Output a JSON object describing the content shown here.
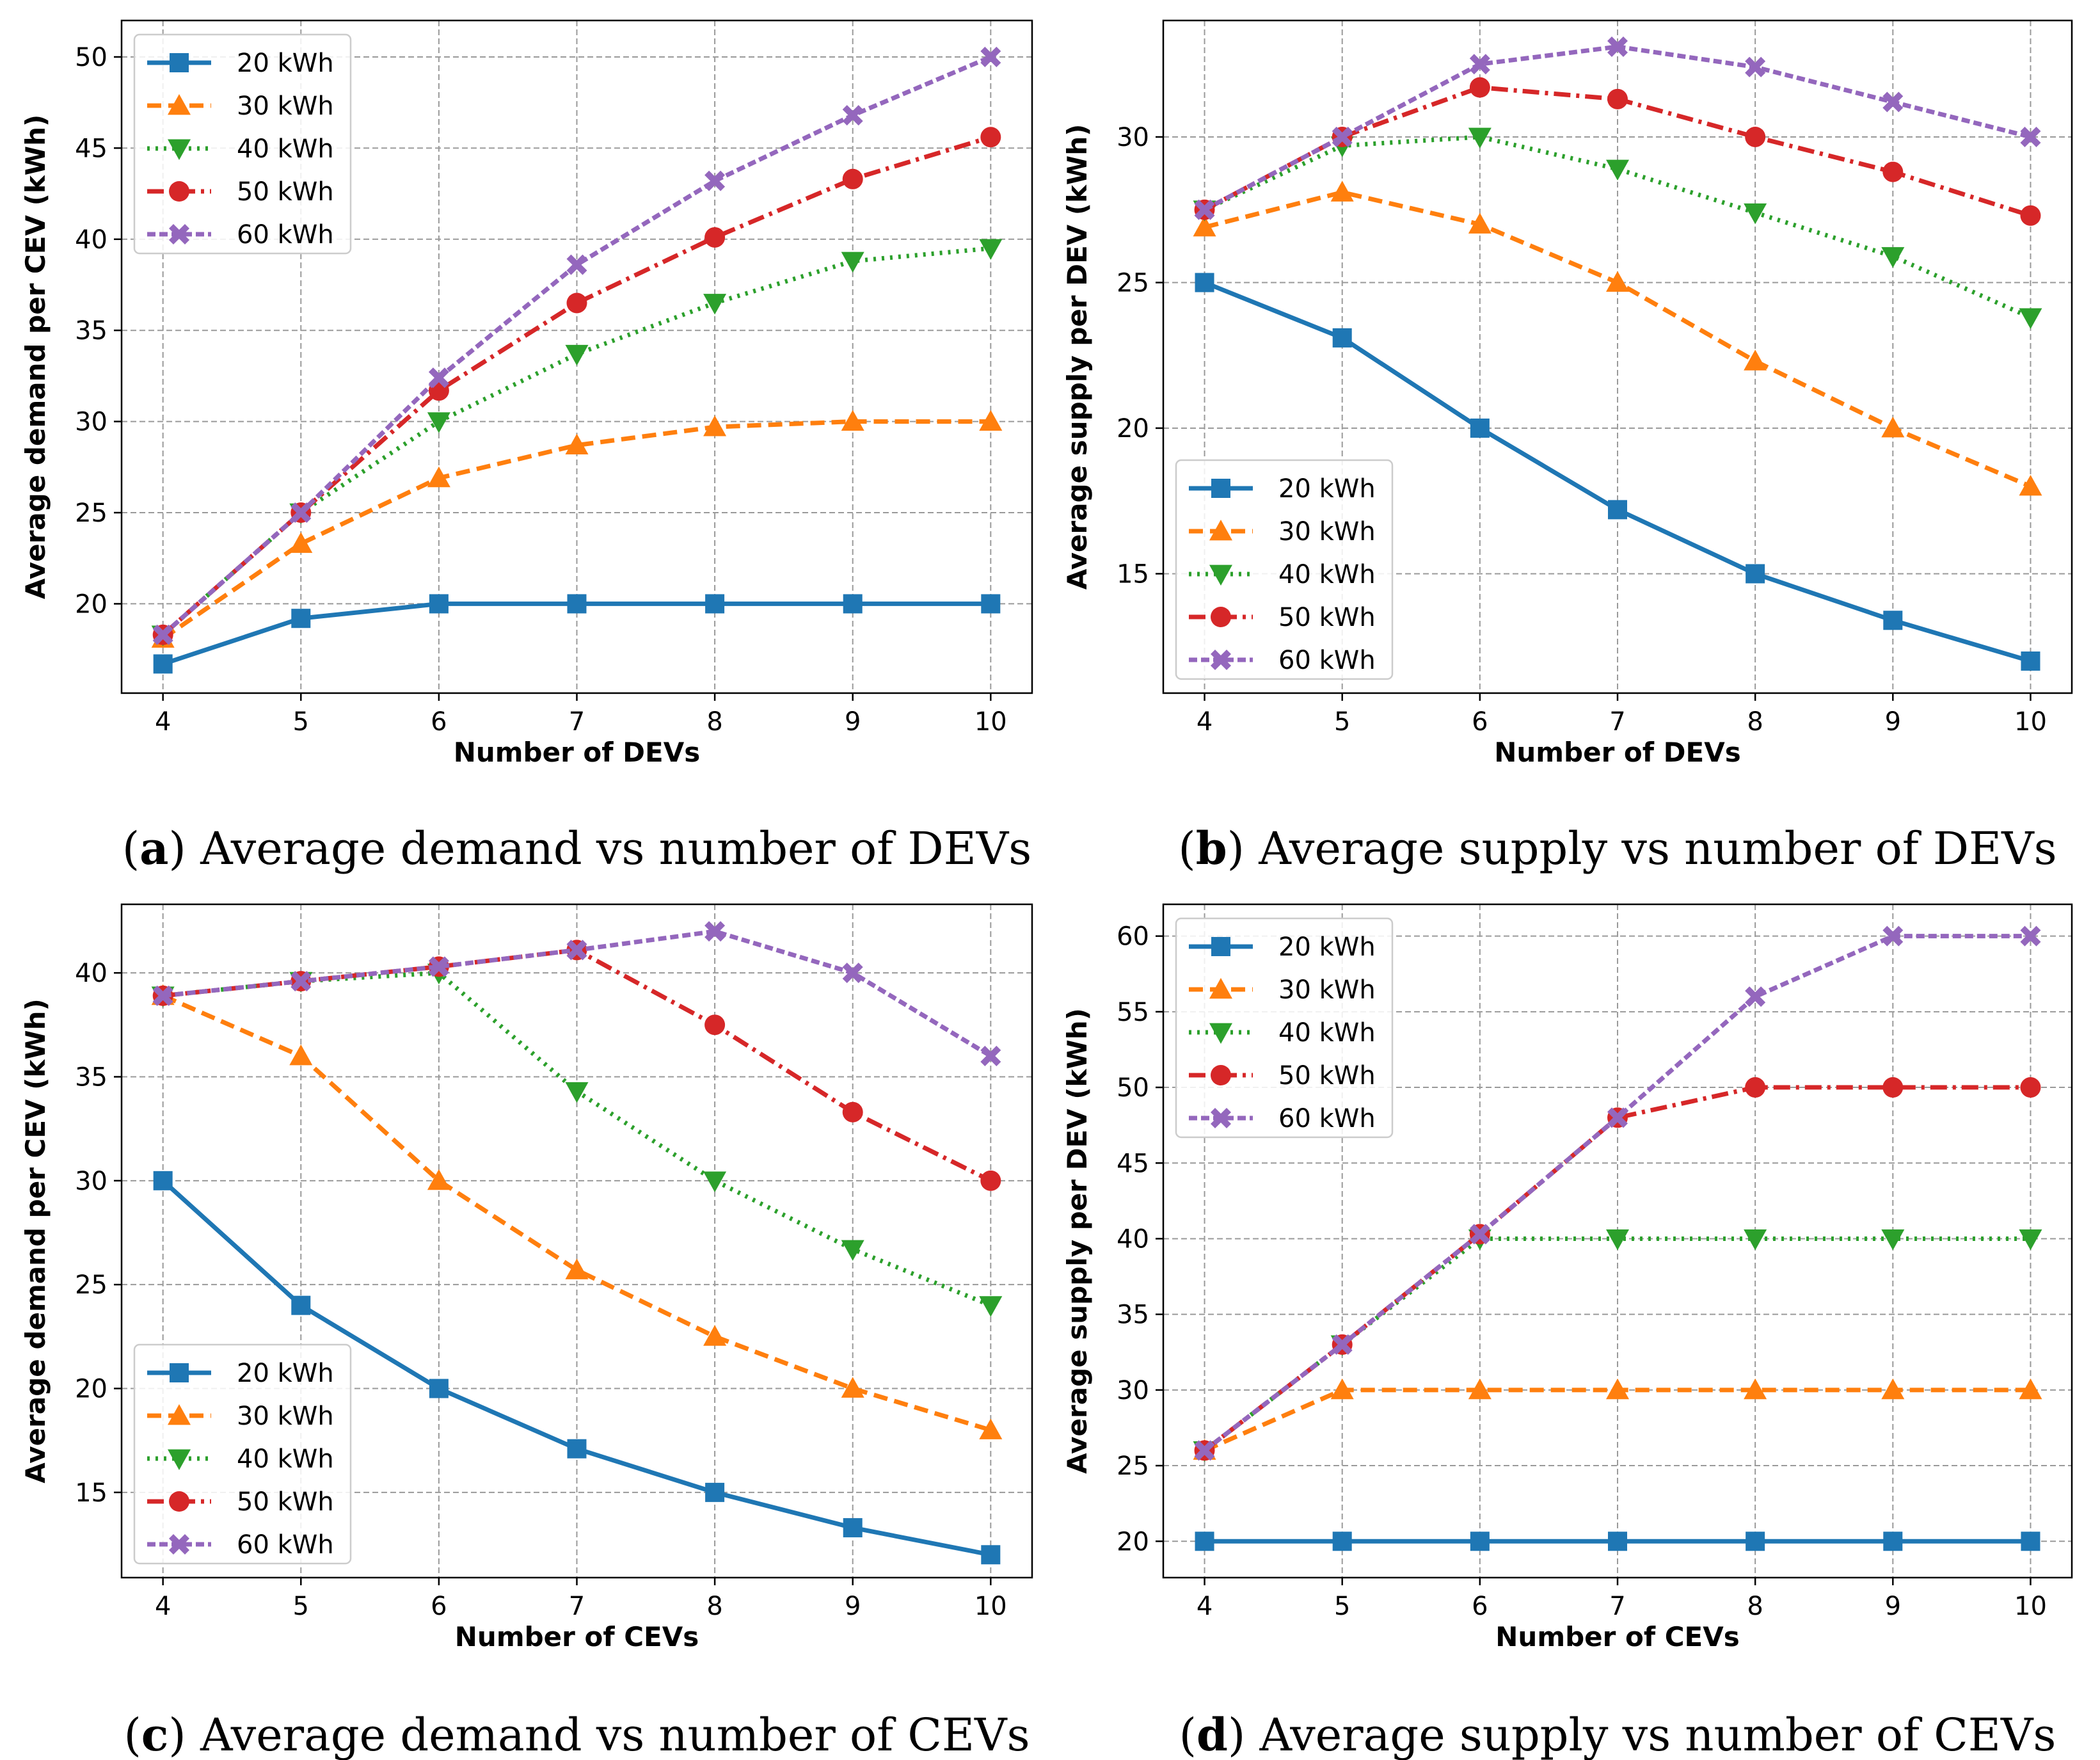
{
  "figure": {
    "colors": {
      "20 kWh": "#1f77b4",
      "30 kWh": "#ff7f0e",
      "40 kWh": "#2ca02c",
      "50 kWh": "#d62728",
      "60 kWh": "#9467bd"
    }
  },
  "chart_data": [
    {
      "id": "a",
      "type": "line",
      "caption_letter": "a",
      "caption_text": "Average demand vs number of DEVs",
      "xlabel": "Number of DEVs",
      "ylabel": "Average demand per CEV (kWh)",
      "x": [
        4,
        5,
        6,
        7,
        8,
        9,
        10
      ],
      "xlim": [
        3.7,
        10.3
      ],
      "ylim": [
        15.1,
        52
      ],
      "yticks": [
        20,
        25,
        30,
        35,
        40,
        45,
        50
      ],
      "grid": true,
      "legend_position": "top-left",
      "series": [
        {
          "name": "20 kWh",
          "values": [
            16.7,
            19.2,
            20,
            20,
            20,
            20,
            20
          ]
        },
        {
          "name": "30 kWh",
          "values": [
            18.1,
            23.3,
            26.9,
            28.7,
            29.7,
            30,
            30
          ]
        },
        {
          "name": "40 kWh",
          "values": [
            18.3,
            25,
            30,
            33.7,
            36.5,
            38.8,
            39.5
          ]
        },
        {
          "name": "50 kWh",
          "values": [
            18.3,
            25,
            31.7,
            36.5,
            40.1,
            43.3,
            45.6
          ]
        },
        {
          "name": "60 kWh",
          "values": [
            18.3,
            25,
            32.4,
            38.6,
            43.2,
            46.8,
            50
          ]
        }
      ]
    },
    {
      "id": "b",
      "type": "line",
      "caption_letter": "b",
      "caption_text": "Average supply vs number of DEVs",
      "xlabel": "Number of DEVs",
      "ylabel": "Average supply per DEV (kWh)",
      "x": [
        4,
        5,
        6,
        7,
        8,
        9,
        10
      ],
      "xlim": [
        3.7,
        10.3
      ],
      "ylim": [
        10.9,
        34
      ],
      "yticks": [
        15,
        20,
        25,
        30
      ],
      "grid": true,
      "legend_position": "bottom-left",
      "series": [
        {
          "name": "20 kWh",
          "values": [
            25,
            23.1,
            20,
            17.2,
            15,
            13.4,
            12
          ]
        },
        {
          "name": "30 kWh",
          "values": [
            26.9,
            28.1,
            27,
            25,
            22.3,
            20,
            18
          ]
        },
        {
          "name": "40 kWh",
          "values": [
            27.5,
            29.7,
            30,
            28.9,
            27.4,
            25.9,
            23.8
          ]
        },
        {
          "name": "50 kWh",
          "values": [
            27.5,
            30,
            31.7,
            31.3,
            30,
            28.8,
            27.3
          ]
        },
        {
          "name": "60 kWh",
          "values": [
            27.5,
            30,
            32.5,
            33.1,
            32.4,
            31.2,
            30
          ]
        }
      ]
    },
    {
      "id": "c",
      "type": "line",
      "caption_letter": "c",
      "caption_text": "Average demand vs number of CEVs",
      "xlabel": "Number of CEVs",
      "ylabel": "Average demand per CEV (kWh)",
      "x": [
        4,
        5,
        6,
        7,
        8,
        9,
        10
      ],
      "xlim": [
        3.7,
        10.3
      ],
      "ylim": [
        10.9,
        43.3
      ],
      "yticks": [
        15,
        20,
        25,
        30,
        35,
        40
      ],
      "grid": true,
      "legend_position": "bottom-left",
      "series": [
        {
          "name": "20 kWh",
          "values": [
            30,
            24,
            20,
            17.1,
            15,
            13.3,
            12
          ]
        },
        {
          "name": "30 kWh",
          "values": [
            38.9,
            36,
            30,
            25.7,
            22.5,
            20,
            18
          ]
        },
        {
          "name": "40 kWh",
          "values": [
            38.9,
            39.6,
            40,
            34.3,
            30,
            26.7,
            24
          ]
        },
        {
          "name": "50 kWh",
          "values": [
            38.9,
            39.6,
            40.3,
            41.1,
            37.5,
            33.3,
            30
          ]
        },
        {
          "name": "60 kWh",
          "values": [
            38.9,
            39.6,
            40.3,
            41.1,
            42,
            40,
            36
          ]
        }
      ]
    },
    {
      "id": "d",
      "type": "line",
      "caption_letter": "d",
      "caption_text": "Average supply vs number of CEVs",
      "xlabel": "Number of CEVs",
      "ylabel": "Average supply per DEV (kWh)",
      "x": [
        4,
        5,
        6,
        7,
        8,
        9,
        10
      ],
      "xlim": [
        3.7,
        10.3
      ],
      "ylim": [
        17.6,
        62.1
      ],
      "yticks": [
        20,
        25,
        30,
        35,
        40,
        45,
        50,
        55,
        60
      ],
      "grid": true,
      "legend_position": "top-left",
      "series": [
        {
          "name": "20 kWh",
          "values": [
            20,
            20,
            20,
            20,
            20,
            20,
            20
          ]
        },
        {
          "name": "30 kWh",
          "values": [
            26,
            30,
            30,
            30,
            30,
            30,
            30
          ]
        },
        {
          "name": "40 kWh",
          "values": [
            26,
            33,
            40,
            40,
            40,
            40,
            40
          ]
        },
        {
          "name": "50 kWh",
          "values": [
            26,
            33,
            40.3,
            48,
            50,
            50,
            50
          ]
        },
        {
          "name": "60 kWh",
          "values": [
            26,
            33,
            40.3,
            48,
            56,
            60,
            60
          ]
        }
      ]
    }
  ]
}
